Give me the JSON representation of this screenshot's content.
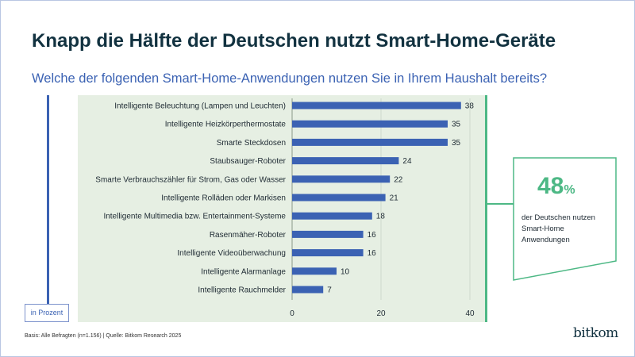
{
  "header": {
    "title": "Knapp die Hälfte der Deutschen nutzt Smart-Home-Geräte",
    "subtitle": "Welche der folgenden Smart-Home-Anwendungen nutzen Sie in Ihrem Haushalt bereits?"
  },
  "unit_label": "in Prozent",
  "callout": {
    "value": "48",
    "unit": "%",
    "text": "der Deutschen nutzen Smart-Home Anwendungen"
  },
  "footer": "Basis: Alle Befragten (n=1.156) | Quelle: Bitkom Research 2025",
  "logo": "bitkom",
  "colors": {
    "bar": "#3b62b3",
    "accent": "#4db885",
    "panel": "#e6efe3",
    "title": "#123240"
  },
  "chart_data": {
    "type": "bar",
    "orientation": "horizontal",
    "categories": [
      "Intelligente Beleuchtung (Lampen und Leuchten)",
      "Intelligente Heizkörperthermostate",
      "Smarte Steckdosen",
      "Staubsauger-Roboter",
      "Smarte Verbrauchszähler für Strom, Gas oder Wasser",
      "Intelligente Rolläden oder Markisen",
      "Intelligente Multimedia bzw. Entertainment-Systeme",
      "Rasenmäher-Roboter",
      "Intelligente Videoüberwachung",
      "Intelligente Alarmanlage",
      "Intelligente Rauchmelder"
    ],
    "values": [
      38,
      35,
      35,
      24,
      22,
      21,
      18,
      16,
      16,
      10,
      7
    ],
    "xlim": [
      0,
      40
    ],
    "xticks": [
      0,
      20,
      40
    ],
    "xlabel": "in Prozent",
    "grid": true,
    "data_labels": true
  }
}
